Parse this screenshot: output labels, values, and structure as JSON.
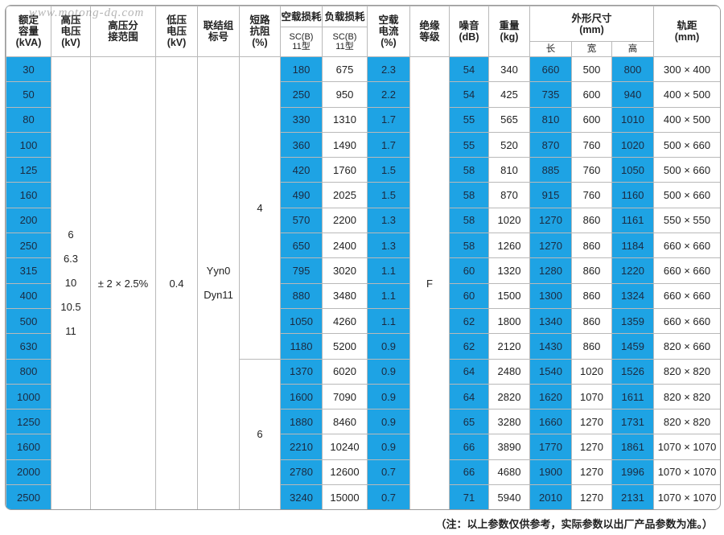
{
  "watermark": "www.motong-dq.com",
  "headers": {
    "capacity": [
      "额定",
      "容量",
      "(kVA)"
    ],
    "hv": [
      "高压",
      "电压",
      "(kV)"
    ],
    "tap": [
      "高压分",
      "接范围"
    ],
    "lv": [
      "低压",
      "电压",
      "(kV)"
    ],
    "vector": [
      "联结组",
      "标号"
    ],
    "impedance": [
      "短路",
      "抗阻",
      "(%)"
    ],
    "noload_loss": "空载损耗",
    "load_loss": "负载损耗",
    "noload_sub": [
      "SC(B)",
      "11型"
    ],
    "load_sub": [
      "SC(B)",
      "11型"
    ],
    "noload_current": [
      "空载",
      "电流",
      "(%)"
    ],
    "insulation": [
      "绝缘",
      "等级"
    ],
    "noise": [
      "噪音",
      "(dB)"
    ],
    "weight": [
      "重量",
      "(kg)"
    ],
    "dimensions": [
      "外形尺寸",
      "(mm)"
    ],
    "dim_l": "长",
    "dim_w": "宽",
    "dim_h": "高",
    "gauge": [
      "轨距",
      "(mm)"
    ]
  },
  "merged": {
    "hv_values": [
      "6",
      "6.3",
      "10",
      "10.5",
      "11"
    ],
    "tap_range": "± 2 × 2.5%",
    "lv_value": "0.4",
    "vector_values": [
      "Yyn0",
      "Dyn11"
    ],
    "impedance_low": "4",
    "impedance_high": "6",
    "insulation": "F"
  },
  "rows": [
    {
      "cap": "30",
      "p0": "180",
      "pk": "675",
      "i0": "2.3",
      "noise": "54",
      "weight": "340",
      "l": "660",
      "w": "500",
      "h": "800",
      "gauge": "300 × 400"
    },
    {
      "cap": "50",
      "p0": "250",
      "pk": "950",
      "i0": "2.2",
      "noise": "54",
      "weight": "425",
      "l": "735",
      "w": "600",
      "h": "940",
      "gauge": "400 × 500"
    },
    {
      "cap": "80",
      "p0": "330",
      "pk": "1310",
      "i0": "1.7",
      "noise": "55",
      "weight": "565",
      "l": "810",
      "w": "600",
      "h": "1010",
      "gauge": "400 × 500"
    },
    {
      "cap": "100",
      "p0": "360",
      "pk": "1490",
      "i0": "1.7",
      "noise": "55",
      "weight": "520",
      "l": "870",
      "w": "760",
      "h": "1020",
      "gauge": "500 × 660"
    },
    {
      "cap": "125",
      "p0": "420",
      "pk": "1760",
      "i0": "1.5",
      "noise": "58",
      "weight": "810",
      "l": "885",
      "w": "760",
      "h": "1050",
      "gauge": "500 × 660"
    },
    {
      "cap": "160",
      "p0": "490",
      "pk": "2025",
      "i0": "1.5",
      "noise": "58",
      "weight": "870",
      "l": "915",
      "w": "760",
      "h": "1160",
      "gauge": "500 × 660"
    },
    {
      "cap": "200",
      "p0": "570",
      "pk": "2200",
      "i0": "1.3",
      "noise": "58",
      "weight": "1020",
      "l": "1270",
      "w": "860",
      "h": "1161",
      "gauge": "550 × 550"
    },
    {
      "cap": "250",
      "p0": "650",
      "pk": "2400",
      "i0": "1.3",
      "noise": "58",
      "weight": "1260",
      "l": "1270",
      "w": "860",
      "h": "1184",
      "gauge": "660 × 660"
    },
    {
      "cap": "315",
      "p0": "795",
      "pk": "3020",
      "i0": "1.1",
      "noise": "60",
      "weight": "1320",
      "l": "1280",
      "w": "860",
      "h": "1220",
      "gauge": "660 × 660"
    },
    {
      "cap": "400",
      "p0": "880",
      "pk": "3480",
      "i0": "1.1",
      "noise": "60",
      "weight": "1500",
      "l": "1300",
      "w": "860",
      "h": "1324",
      "gauge": "660 × 660"
    },
    {
      "cap": "500",
      "p0": "1050",
      "pk": "4260",
      "i0": "1.1",
      "noise": "62",
      "weight": "1800",
      "l": "1340",
      "w": "860",
      "h": "1359",
      "gauge": "660 × 660"
    },
    {
      "cap": "630",
      "p0": "1180",
      "pk": "5200",
      "i0": "0.9",
      "noise": "62",
      "weight": "2120",
      "l": "1430",
      "w": "860",
      "h": "1459",
      "gauge": "820 × 660"
    },
    {
      "cap": "800",
      "p0": "1370",
      "pk": "6020",
      "i0": "0.9",
      "noise": "64",
      "weight": "2480",
      "l": "1540",
      "w": "1020",
      "h": "1526",
      "gauge": "820 × 820"
    },
    {
      "cap": "1000",
      "p0": "1600",
      "pk": "7090",
      "i0": "0.9",
      "noise": "64",
      "weight": "2820",
      "l": "1620",
      "w": "1070",
      "h": "1611",
      "gauge": "820 × 820"
    },
    {
      "cap": "1250",
      "p0": "1880",
      "pk": "8460",
      "i0": "0.9",
      "noise": "65",
      "weight": "3280",
      "l": "1660",
      "w": "1270",
      "h": "1731",
      "gauge": "820 × 820"
    },
    {
      "cap": "1600",
      "p0": "2210",
      "pk": "10240",
      "i0": "0.9",
      "noise": "66",
      "weight": "3890",
      "l": "1770",
      "w": "1270",
      "h": "1861",
      "gauge": "1070 × 1070"
    },
    {
      "cap": "2000",
      "p0": "2780",
      "pk": "12600",
      "i0": "0.7",
      "noise": "66",
      "weight": "4680",
      "l": "1900",
      "w": "1270",
      "h": "1996",
      "gauge": "1070 × 1070"
    },
    {
      "cap": "2500",
      "p0": "3240",
      "pk": "15000",
      "i0": "0.7",
      "noise": "71",
      "weight": "5940",
      "l": "2010",
      "w": "1270",
      "h": "2131",
      "gauge": "1070 × 1070"
    }
  ],
  "note": "（注：以上参数仅供参考，实际参数以出厂产品参数为准。）",
  "colors": {
    "highlight": "#1ea3e4",
    "border": "#b9b9b9"
  }
}
